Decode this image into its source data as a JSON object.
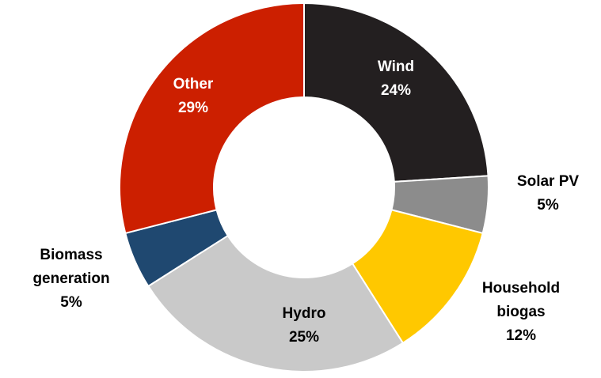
{
  "chart_data": {
    "type": "pie",
    "variant": "donut",
    "title": "",
    "start_angle_deg": 0,
    "direction": "clockwise",
    "slices": [
      {
        "key": "wind",
        "name": "Wind",
        "value_label": "24%",
        "value": 24,
        "color": "#231f20",
        "label_color": "#ffffff",
        "label_pos": "inside",
        "name_lines": [
          "Wind"
        ]
      },
      {
        "key": "solar",
        "name": "Solar PV",
        "value_label": "5%",
        "value": 5,
        "color": "#8c8c8c",
        "label_color": "#000000",
        "label_pos": "outside",
        "name_lines": [
          "Solar PV"
        ]
      },
      {
        "key": "household-biogas",
        "name": "Household biogas",
        "value_label": "12%",
        "value": 12,
        "color": "#ffc800",
        "label_color": "#000000",
        "label_pos": "outside",
        "name_lines": [
          "Household",
          "biogas"
        ]
      },
      {
        "key": "hydro",
        "name": "Hydro",
        "value_label": "25%",
        "value": 25,
        "color": "#c9c9c9",
        "label_color": "#000000",
        "label_pos": "inside",
        "name_lines": [
          "Hydro"
        ]
      },
      {
        "key": "biomass",
        "name": "Biomass generation",
        "value_label": "5%",
        "value": 5,
        "color": "#1f4870",
        "label_color": "#000000",
        "label_pos": "outside",
        "name_lines": [
          "Biomass",
          "generation"
        ]
      },
      {
        "key": "other",
        "name": "Other",
        "value_label": "29%",
        "value": 29,
        "color": "#cc1f00",
        "label_color": "#ffffff",
        "label_pos": "inside",
        "name_lines": [
          "Other"
        ]
      }
    ]
  }
}
